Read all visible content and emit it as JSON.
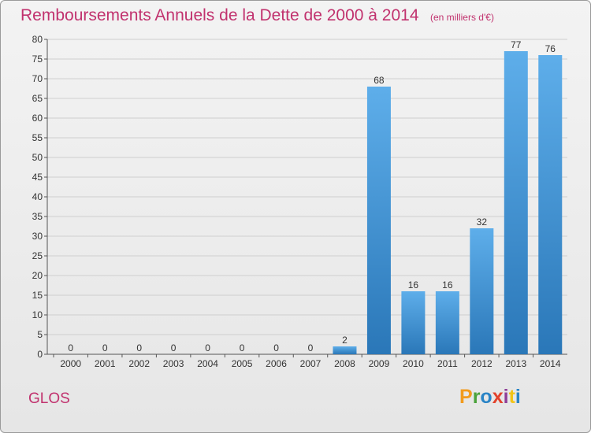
{
  "header": {
    "title": "Remboursements Annuels de la Dette de 2000 à 2014",
    "unit": "(en milliers d'€)"
  },
  "footer": {
    "city": "GLOS",
    "logo_letters": [
      "P",
      "r",
      "o",
      "x",
      "i",
      "t",
      "i"
    ]
  },
  "colors": {
    "title": "#c1326e",
    "bar_top": "#5eaeea",
    "bar_bottom": "#2a77b8",
    "grid": "#cfcfcf"
  },
  "chart_data": {
    "type": "bar",
    "title": "Remboursements Annuels de la Dette de 2000 à 2014",
    "xlabel": "",
    "ylabel": "",
    "categories": [
      "2000",
      "2001",
      "2002",
      "2003",
      "2004",
      "2005",
      "2006",
      "2007",
      "2008",
      "2009",
      "2010",
      "2011",
      "2012",
      "2013",
      "2014"
    ],
    "values": [
      0,
      0,
      0,
      0,
      0,
      0,
      0,
      0,
      2,
      68,
      16,
      16,
      32,
      77,
      76
    ],
    "ylim": [
      0,
      80
    ],
    "yticks": [
      0,
      5,
      10,
      15,
      20,
      25,
      30,
      35,
      40,
      45,
      50,
      55,
      60,
      65,
      70,
      75,
      80
    ],
    "grid": true,
    "data_labels": true
  }
}
